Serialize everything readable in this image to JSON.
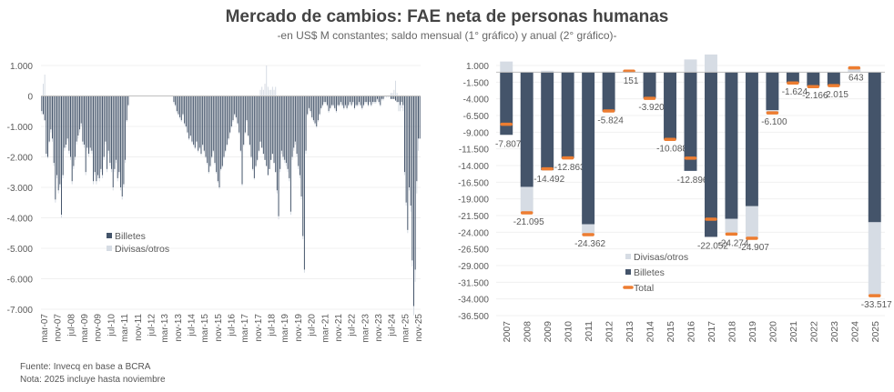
{
  "title": "Mercado de cambios: FAE neta de personas humanas",
  "subtitle": "-en US$ M constantes; saldo mensual (1° gráfico) y anual (2° gráfico)-",
  "footer": {
    "source": "Fuente: Invecq en base a BCRA",
    "note": "Nota: 2025 incluye hasta noviembre"
  },
  "colors": {
    "billetes": "#44546a",
    "divisas": "#d6dce4",
    "total": "#ed7d31",
    "text": "#595959"
  },
  "chart_data": [
    {
      "type": "bar",
      "stacked": true,
      "x_tick_labels": [
        "mar-07",
        "nov-07",
        "jul-08",
        "mar-09",
        "nov-09",
        "jul-10",
        "mar-11",
        "nov-11",
        "jul-12",
        "mar-13",
        "nov-13",
        "jul-14",
        "mar-15",
        "nov-15",
        "jul-16",
        "mar-17",
        "nov-17",
        "jul-18",
        "mar-19",
        "nov-19",
        "jul-20",
        "mar-21",
        "nov-21",
        "jul-22",
        "mar-23",
        "nov-23",
        "jul-24",
        "mar-25",
        "nov-25"
      ],
      "y_ticks": [
        "1.000",
        "0",
        "-1.000",
        "-2.000",
        "-3.000",
        "-4.000",
        "-5.000",
        "-6.000",
        "-7.000"
      ],
      "ylim": [
        -7000,
        1000
      ],
      "legend": {
        "position": "left-center",
        "entries": [
          "Billetes",
          "Divisas/otros"
        ]
      },
      "series": [
        {
          "name": "Billetes",
          "values": [
            -500,
            -600,
            -800,
            -1900,
            -2000,
            -1500,
            -1100,
            -1400,
            -2200,
            -3400,
            -2600,
            -3100,
            -2900,
            -3900,
            -2600,
            -1700,
            -1600,
            -1400,
            -1800,
            -2000,
            -2800,
            -2300,
            -2000,
            -1500,
            -1300,
            -1100,
            -900,
            -1500,
            -1600,
            -2500,
            -1700,
            -1900,
            -1700,
            -1800,
            -2800,
            -2500,
            -2800,
            -2600,
            -2700,
            -2400,
            -2600,
            -2000,
            -1500,
            -2400,
            -1800,
            -2200,
            -2400,
            -3000,
            -2400,
            -2100,
            -2700,
            -2500,
            -3000,
            -3300,
            -2900,
            -2100,
            -800,
            -300,
            0,
            0,
            0,
            0,
            0,
            0,
            0,
            0,
            0,
            0,
            0,
            0,
            0,
            0,
            0,
            0,
            0,
            0,
            0,
            0,
            0,
            0,
            0,
            0,
            0,
            0,
            0,
            0,
            0,
            -200,
            -300,
            -500,
            -600,
            -700,
            -800,
            -600,
            -900,
            -1000,
            -1200,
            -1400,
            -1300,
            -1500,
            -1600,
            -1700,
            -1500,
            -1800,
            -1700,
            -1900,
            -1600,
            -1800,
            -2000,
            -2200,
            -2500,
            -2300,
            -2000,
            -1800,
            -2200,
            -2500,
            -2800,
            -3000,
            -2400,
            -2300,
            -2000,
            -1800,
            -1600,
            -1400,
            -1200,
            -1000,
            -800,
            -600,
            -700,
            -900,
            -1200,
            -1800,
            -2900,
            -1600,
            -1200,
            -800,
            -1300,
            -1600,
            -2000,
            -2400,
            -2700,
            -2300,
            -2100,
            -1800,
            -1500,
            -1700,
            -1900,
            -2100,
            -2300,
            -2600,
            -2400,
            -2100,
            -1900,
            -2200,
            -2500,
            -3100,
            -3950,
            -2400,
            -1800,
            -2000,
            -2100,
            -2200,
            -2400,
            -2700,
            -3800,
            -2000,
            -1700,
            -1500,
            -1900,
            -2300,
            -2600,
            -3300,
            -4600,
            -5700,
            -1800,
            -600,
            -400,
            -500,
            -700,
            -800,
            -900,
            -1000,
            -800,
            -600,
            -400,
            -300,
            -200,
            -200,
            -300,
            -500,
            -400,
            -300,
            -300,
            -400,
            -500,
            -300,
            -300,
            -200,
            -300,
            -400,
            -300,
            -400,
            -300,
            -200,
            -300,
            -200,
            -400,
            -300,
            -300,
            -200,
            -300,
            -400,
            -300,
            -200,
            -200,
            -300,
            -200,
            -300,
            -200,
            -200,
            -200,
            -100,
            -200,
            -300,
            -100,
            -100,
            0,
            0,
            0,
            0,
            -100,
            -100,
            -100,
            -150,
            -200,
            -200,
            -300,
            -200,
            -300,
            -2500,
            -3500,
            -4400,
            -3000,
            -3600,
            -5400,
            -6900,
            -5700,
            -2800,
            -1400,
            -1400
          ]
        },
        {
          "name": "Divisas/otros",
          "values": [
            -100,
            400,
            700,
            -100,
            -50,
            -50,
            -100,
            -100,
            -100,
            -100,
            -100,
            -100,
            -100,
            -100,
            -100,
            -100,
            -100,
            -100,
            -100,
            -100,
            -100,
            -100,
            -100,
            -100,
            -100,
            -100,
            -100,
            -100,
            -100,
            -100,
            -100,
            -100,
            -100,
            -100,
            -100,
            -100,
            -100,
            -100,
            -100,
            -100,
            -100,
            -100,
            -100,
            -100,
            -100,
            -100,
            -100,
            -100,
            -100,
            -100,
            -100,
            -100,
            -100,
            -100,
            -100,
            -100,
            -50,
            -50,
            0,
            0,
            0,
            0,
            0,
            0,
            0,
            0,
            0,
            0,
            0,
            0,
            0,
            0,
            0,
            0,
            0,
            0,
            0,
            0,
            0,
            0,
            0,
            0,
            0,
            0,
            0,
            0,
            0,
            -50,
            -50,
            -50,
            -50,
            -50,
            -50,
            -50,
            -50,
            -50,
            -50,
            -50,
            -50,
            -50,
            -50,
            -50,
            -50,
            -50,
            -50,
            -50,
            -50,
            -50,
            -50,
            -50,
            -50,
            -50,
            -50,
            -50,
            -50,
            -50,
            -50,
            -50,
            -50,
            -50,
            -50,
            -50,
            -50,
            -50,
            -50,
            -50,
            -50,
            -50,
            -50,
            -50,
            -50,
            -50,
            -50,
            -50,
            -50,
            -50,
            -50,
            -50,
            -50,
            -50,
            -50,
            -50,
            -50,
            -50,
            200,
            300,
            200,
            400,
            1000,
            300,
            200,
            200,
            300,
            200,
            300,
            -100,
            -100,
            -100,
            -100,
            -100,
            -100,
            -100,
            -100,
            -100,
            -100,
            -100,
            -100,
            -100,
            -100,
            -100,
            -100,
            -100,
            -100,
            -100,
            -100,
            -50,
            -50,
            -50,
            -50,
            -50,
            -50,
            -50,
            -50,
            -50,
            -50,
            -50,
            -50,
            -50,
            -50,
            -50,
            -50,
            -50,
            -50,
            -50,
            -50,
            -50,
            -50,
            -50,
            -50,
            -50,
            -50,
            -50,
            -50,
            -50,
            -50,
            -50,
            -50,
            -50,
            -50,
            -50,
            -50,
            -50,
            -50,
            -50,
            -50,
            -50,
            -50,
            -50,
            -50,
            -50,
            -50,
            -50,
            -50,
            -50,
            -50,
            -50,
            -50,
            -50,
            -50,
            -50,
            100,
            100,
            200,
            500,
            100,
            -300,
            -200,
            -200,
            -200,
            -100,
            -100,
            -100,
            -100,
            -200,
            -200,
            -300,
            -400,
            -400,
            -400
          ]
        }
      ]
    },
    {
      "type": "bar",
      "stacked": true,
      "categories": [
        "2007",
        "2008",
        "2009",
        "2010",
        "2011",
        "2012",
        "2013",
        "2014",
        "2015",
        "2016",
        "2017",
        "2018",
        "2019",
        "2020",
        "2021",
        "2022",
        "2023",
        "2024",
        "2025"
      ],
      "y_ticks": [
        "1.000",
        "-1.500",
        "-4.000",
        "-6.500",
        "-9.000",
        "-11.500",
        "-14.000",
        "-16.500",
        "-19.000",
        "-21.500",
        "-24.000",
        "-26.500",
        "-29.000",
        "-31.500",
        "-34.000",
        "-36.500"
      ],
      "ylim": [
        -36500,
        1000
      ],
      "legend": {
        "position": "bottom-left",
        "entries": [
          "Divisas/otros",
          "Billetes",
          "Total"
        ]
      },
      "series": [
        {
          "name": "Billetes",
          "values": [
            -9400,
            -17200,
            -14700,
            -12900,
            -22800,
            -5900,
            0,
            -3900,
            -10100,
            -14800,
            -24700,
            -22000,
            -20100,
            -5700,
            -1600,
            -2100,
            -2000,
            0,
            -22500
          ]
        },
        {
          "name": "Divisas/otros",
          "values": [
            1593,
            -3895,
            208,
            37,
            -1562,
            76,
            151,
            -20,
            12,
            1904,
            2648,
            -2274,
            -4807,
            -400,
            -24,
            -66,
            -15,
            643,
            -11017
          ]
        },
        {
          "name": "Total",
          "values": [
            -7807,
            -21095,
            -14492,
            -12863,
            -24362,
            -5824,
            151,
            -3920,
            -10088,
            -12896,
            -22052,
            -24274,
            -24907,
            -6100,
            -1624,
            -2166,
            -2015,
            643,
            -33517
          ]
        }
      ],
      "data_labels": [
        "-7.807",
        "-21.095",
        "-14.492",
        "-12.863",
        "-24.362",
        "-5.824",
        "151",
        "-3.920",
        "-10.088",
        "-12.896",
        "-22.052",
        "-24.274",
        "-24.907",
        "-6.100",
        "-1.624",
        "-2.166",
        "-2.015",
        "643",
        "-33.517"
      ]
    }
  ]
}
